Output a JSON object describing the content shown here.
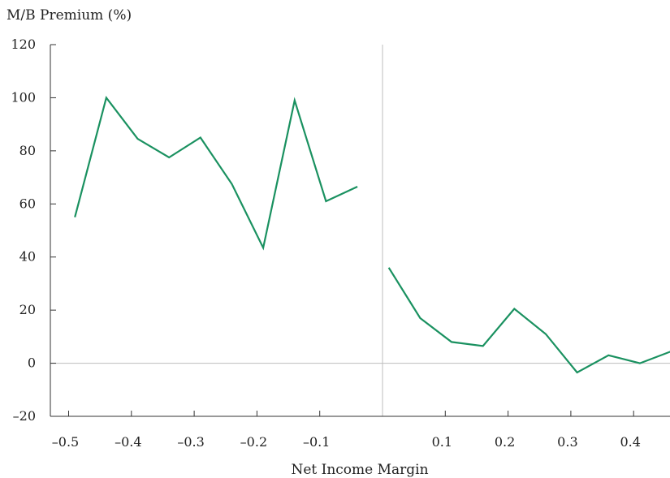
{
  "chart_data": {
    "type": "line",
    "title": "",
    "ylabel": "M/B Premium (%)",
    "xlabel": "Net Income Margin",
    "xlim": [
      -0.5,
      0.45
    ],
    "ylim": [
      -20,
      120
    ],
    "x_ticks": [
      -0.5,
      -0.4,
      -0.3,
      -0.2,
      -0.1,
      0.1,
      0.2,
      0.3,
      0.4
    ],
    "x_tick_labels": [
      "–0.5",
      "–0.4",
      "–0.3",
      "–0.2",
      "–0.1",
      "0.1",
      "0.2",
      "0.3",
      "0.4"
    ],
    "y_ticks": [
      -20,
      0,
      20,
      40,
      60,
      80,
      100,
      120
    ],
    "y_tick_labels": [
      "–20",
      "0",
      "20",
      "40",
      "60",
      "80",
      "100",
      "120"
    ],
    "reference_lines": {
      "x": 0,
      "y": 0
    },
    "grid": false,
    "line_color": "#1a9160",
    "series": [
      {
        "x": [
          -0.49,
          -0.44,
          -0.39,
          -0.34,
          -0.29,
          -0.24,
          -0.19,
          -0.14,
          -0.09,
          -0.04
        ],
        "y": [
          55,
          100,
          84.5,
          77.5,
          85,
          67.5,
          43.5,
          99,
          61,
          66.5
        ]
      },
      {
        "x": [
          0.01,
          0.06,
          0.11,
          0.16,
          0.21,
          0.26,
          0.31,
          0.36,
          0.41,
          0.46
        ],
        "y": [
          36,
          17,
          8,
          6.5,
          20.5,
          11,
          -3.5,
          3,
          0,
          4.5
        ]
      }
    ]
  }
}
